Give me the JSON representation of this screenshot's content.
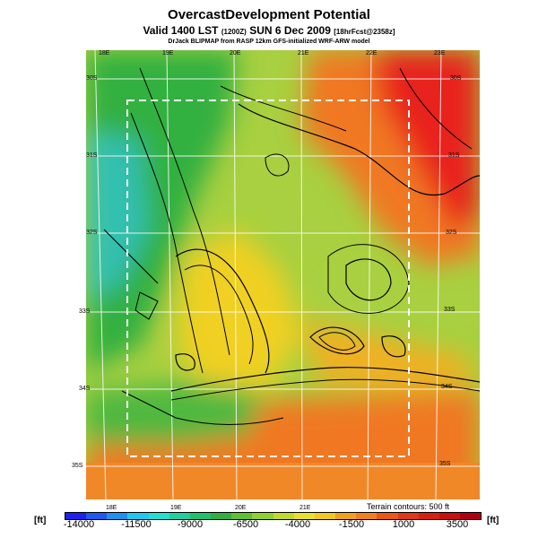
{
  "header": {
    "title": "OvercastDevelopment Potential",
    "valid_prefix": "Valid 1400 LST",
    "valid_utc": "(1200Z)",
    "valid_date": "SUN 6 Dec 2009",
    "forecast": "[18hrFcst@2358z]",
    "credit": "DrJack BLIPMAP from RASP 12km GFS-initialized WRF-ARW model"
  },
  "map": {
    "top_lon_labels": [
      "18E",
      "19E",
      "20E",
      "21E",
      "22E",
      "23E"
    ],
    "bottom_lon_labels": [
      "18E",
      "19E",
      "20E",
      "21E"
    ],
    "left_lat_labels": [
      "30S",
      "31S",
      "32S",
      "33S",
      "34S",
      "35S"
    ],
    "right_lat_labels": [
      "30S",
      "31S",
      "32S",
      "33S",
      "34S",
      "35S"
    ],
    "terrain_note": "Terrain contours: 500 ft",
    "area_colors": {
      "red": "#e8201a",
      "orange": "#f07820",
      "yellow": "#f0d020",
      "light_green": "#a0d038",
      "green": "#30b040",
      "cyan": "#30c0b0"
    }
  },
  "colorbar": {
    "unit_left": "[ft]",
    "unit_right": "[ft]",
    "tick_labels": [
      "-14000",
      "-11500",
      "-9000",
      "-6500",
      "-4000",
      "-1500",
      "1000",
      "3500"
    ],
    "colors": [
      "#2020f0",
      "#2058f0",
      "#2090f0",
      "#20c8f0",
      "#20e0d0",
      "#20d0a0",
      "#20c070",
      "#30b040",
      "#60c030",
      "#90d030",
      "#c0d830",
      "#e8e030",
      "#f0c820",
      "#f0a020",
      "#f08020",
      "#e85818",
      "#e03818",
      "#d82010",
      "#c81010",
      "#b00010"
    ]
  }
}
